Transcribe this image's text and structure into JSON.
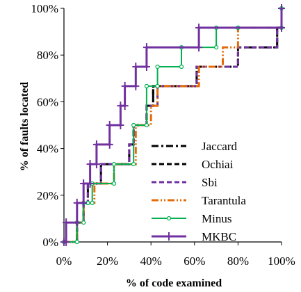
{
  "chart_data": {
    "type": "line",
    "title": "",
    "xlabel": "% of code examined",
    "ylabel": "% of faults located",
    "xlim": [
      0,
      100
    ],
    "ylim": [
      0,
      100
    ],
    "x_ticks": [
      "0%",
      "20%",
      "40%",
      "60%",
      "80%",
      "100%"
    ],
    "y_ticks": [
      "0%",
      "20%",
      "40%",
      "60%",
      "80%",
      "100%"
    ],
    "grid": false,
    "legend_position": "bottom-right",
    "series": [
      {
        "name": "Jaccard",
        "color": "#000000",
        "dash": "dashdot",
        "points": [
          [
            0,
            0
          ],
          [
            6,
            0
          ],
          [
            6,
            8.3
          ],
          [
            9,
            8.3
          ],
          [
            9,
            16.7
          ],
          [
            11,
            16.7
          ],
          [
            11,
            25
          ],
          [
            17,
            25
          ],
          [
            17,
            33.3
          ],
          [
            23,
            33.3
          ],
          [
            23,
            33.3
          ],
          [
            30,
            33.3
          ],
          [
            30,
            41.7
          ],
          [
            32,
            41.7
          ],
          [
            32,
            50
          ],
          [
            38,
            50
          ],
          [
            38,
            58.3
          ],
          [
            41,
            58.3
          ],
          [
            41,
            66.7
          ],
          [
            61,
            66.7
          ],
          [
            61,
            75
          ],
          [
            75,
            75
          ],
          [
            75,
            75
          ],
          [
            80,
            75
          ],
          [
            80,
            83.3
          ],
          [
            98,
            83.3
          ],
          [
            98,
            91.7
          ],
          [
            100,
            91.7
          ],
          [
            100,
            100
          ]
        ]
      },
      {
        "name": "Ochiai",
        "color": "#000000",
        "dash": "dashed",
        "points": [
          [
            0,
            0
          ],
          [
            6,
            0
          ],
          [
            6,
            8.3
          ],
          [
            9,
            8.3
          ],
          [
            9,
            16.7
          ],
          [
            11,
            16.7
          ],
          [
            11,
            25
          ],
          [
            17,
            25
          ],
          [
            17,
            33.3
          ],
          [
            30,
            33.3
          ],
          [
            30,
            41.7
          ],
          [
            32,
            41.7
          ],
          [
            32,
            50
          ],
          [
            38,
            50
          ],
          [
            38,
            58.3
          ],
          [
            41,
            58.3
          ],
          [
            41,
            66.7
          ],
          [
            61,
            66.7
          ],
          [
            61,
            75
          ],
          [
            80,
            75
          ],
          [
            80,
            83.3
          ],
          [
            98,
            83.3
          ],
          [
            98,
            91.7
          ],
          [
            100,
            91.7
          ],
          [
            100,
            100
          ]
        ]
      },
      {
        "name": "Sbi",
        "color": "#7030a0",
        "dash": "dashed",
        "points": [
          [
            0,
            0
          ],
          [
            6,
            0
          ],
          [
            6,
            8.3
          ],
          [
            9,
            8.3
          ],
          [
            9,
            16.7
          ],
          [
            11,
            16.7
          ],
          [
            11,
            25
          ],
          [
            17,
            25
          ],
          [
            17,
            33.3
          ],
          [
            30,
            33.3
          ],
          [
            30,
            41.7
          ],
          [
            32,
            41.7
          ],
          [
            32,
            50
          ],
          [
            38,
            50
          ],
          [
            38,
            58.3
          ],
          [
            43,
            58.3
          ],
          [
            43,
            66.7
          ],
          [
            61,
            66.7
          ],
          [
            61,
            75
          ],
          [
            80,
            75
          ],
          [
            80,
            83.3
          ],
          [
            98,
            83.3
          ],
          [
            98,
            91.7
          ],
          [
            100,
            91.7
          ],
          [
            100,
            100
          ]
        ]
      },
      {
        "name": "Tarantula",
        "color": "#e36c09",
        "dash": "dashdotdot",
        "points": [
          [
            0,
            0
          ],
          [
            6,
            0
          ],
          [
            6,
            8.3
          ],
          [
            9,
            8.3
          ],
          [
            9,
            16.7
          ],
          [
            11,
            16.7
          ],
          [
            11,
            16.7
          ],
          [
            14,
            16.7
          ],
          [
            14,
            25
          ],
          [
            23,
            25
          ],
          [
            23,
            33.3
          ],
          [
            33,
            33.3
          ],
          [
            33,
            50
          ],
          [
            40,
            50
          ],
          [
            40,
            58.3
          ],
          [
            43,
            58.3
          ],
          [
            43,
            66.7
          ],
          [
            62,
            66.7
          ],
          [
            62,
            75
          ],
          [
            73,
            75
          ],
          [
            73,
            83.3
          ],
          [
            80,
            83.3
          ],
          [
            80,
            91.7
          ],
          [
            100,
            91.7
          ],
          [
            100,
            100
          ]
        ]
      },
      {
        "name": "Minus",
        "color": "#00b050",
        "dash": "solid",
        "marker": "circle",
        "points": [
          [
            0,
            0
          ],
          [
            6,
            0
          ],
          [
            6,
            8.3
          ],
          [
            9,
            8.3
          ],
          [
            9,
            16.7
          ],
          [
            11,
            16.7
          ],
          [
            11,
            16.7
          ],
          [
            13,
            16.7
          ],
          [
            13,
            25
          ],
          [
            23,
            25
          ],
          [
            23,
            33.3
          ],
          [
            32,
            33.3
          ],
          [
            32,
            50
          ],
          [
            38,
            50
          ],
          [
            38,
            66.7
          ],
          [
            43,
            66.7
          ],
          [
            43,
            75
          ],
          [
            54,
            75
          ],
          [
            54,
            83.3
          ],
          [
            70,
            83.3
          ],
          [
            70,
            91.7
          ],
          [
            80,
            91.7
          ],
          [
            80,
            91.7
          ],
          [
            100,
            91.7
          ],
          [
            100,
            100
          ]
        ]
      },
      {
        "name": "MKBC",
        "color": "#7030a0",
        "dash": "solid",
        "marker": "plus",
        "points": [
          [
            0,
            0
          ],
          [
            1,
            0
          ],
          [
            1,
            8.3
          ],
          [
            6,
            8.3
          ],
          [
            6,
            16.7
          ],
          [
            9,
            16.7
          ],
          [
            9,
            25
          ],
          [
            12,
            25
          ],
          [
            12,
            33.3
          ],
          [
            15,
            33.3
          ],
          [
            15,
            41.7
          ],
          [
            21,
            41.7
          ],
          [
            21,
            50
          ],
          [
            26,
            50
          ],
          [
            26,
            58.3
          ],
          [
            28,
            58.3
          ],
          [
            28,
            66.7
          ],
          [
            33,
            66.7
          ],
          [
            33,
            75
          ],
          [
            38,
            75
          ],
          [
            38,
            83.3
          ],
          [
            62,
            83.3
          ],
          [
            62,
            91.7
          ],
          [
            100,
            91.7
          ],
          [
            100,
            100
          ]
        ]
      }
    ]
  }
}
